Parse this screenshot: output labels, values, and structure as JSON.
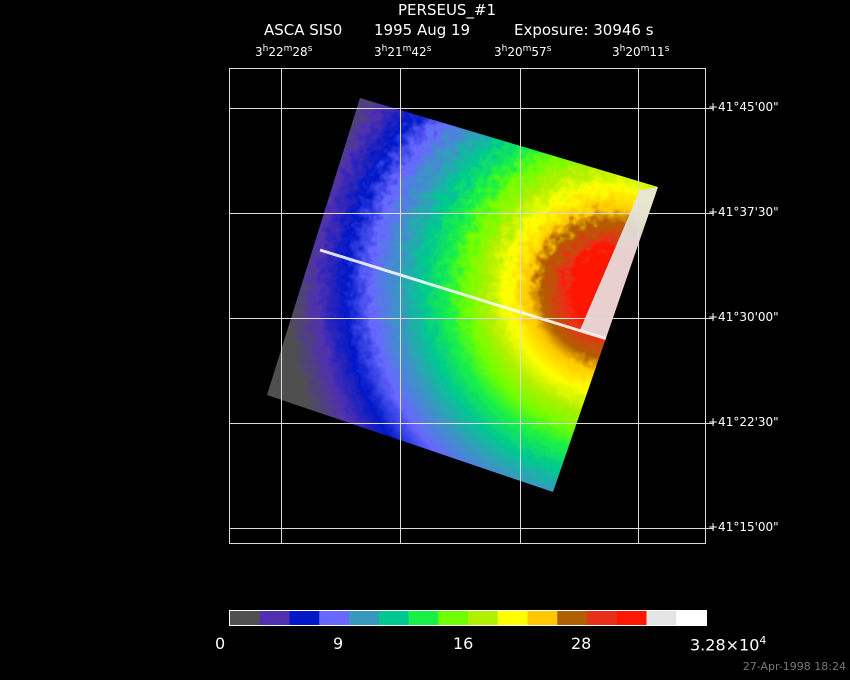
{
  "header": {
    "title": "PERSEUS_#1",
    "instrument": "ASCA SIS0",
    "date": "1995 Aug 19",
    "exposure": "Exposure: 30946 s"
  },
  "chart_data": {
    "type": "heatmap",
    "title": "PERSEUS_#1",
    "subtitle": "ASCA SIS0   1995 Aug 19   Exposure: 30946 s",
    "x_ticks": [
      {
        "h": "3",
        "m": "22",
        "s": "28"
      },
      {
        "h": "3",
        "m": "21",
        "s": "42"
      },
      {
        "h": "3",
        "m": "20",
        "s": "57"
      },
      {
        "h": "3",
        "m": "20",
        "s": "11"
      }
    ],
    "y_ticks": [
      "+41°45'00\"",
      "+41°37'30\"",
      "+41°30'00\"",
      "+41°22'30\"",
      "+41°15'00\""
    ],
    "grid": true,
    "colorbar": {
      "tick_labels": [
        "0",
        "9",
        "16",
        "28",
        "3.28×10"
      ],
      "max_exponent": "4",
      "colors": [
        "#505050",
        "#5030b0",
        "#0018c8",
        "#6868ff",
        "#3898c0",
        "#00c890",
        "#18f048",
        "#70ff00",
        "#b0f000",
        "#ffff00",
        "#ffc800",
        "#b06000",
        "#e83018",
        "#ff1800",
        "#e4e4e4",
        "#ffffff"
      ]
    }
  },
  "footer": {
    "timestamp": "27-Apr-1998 18:24"
  }
}
